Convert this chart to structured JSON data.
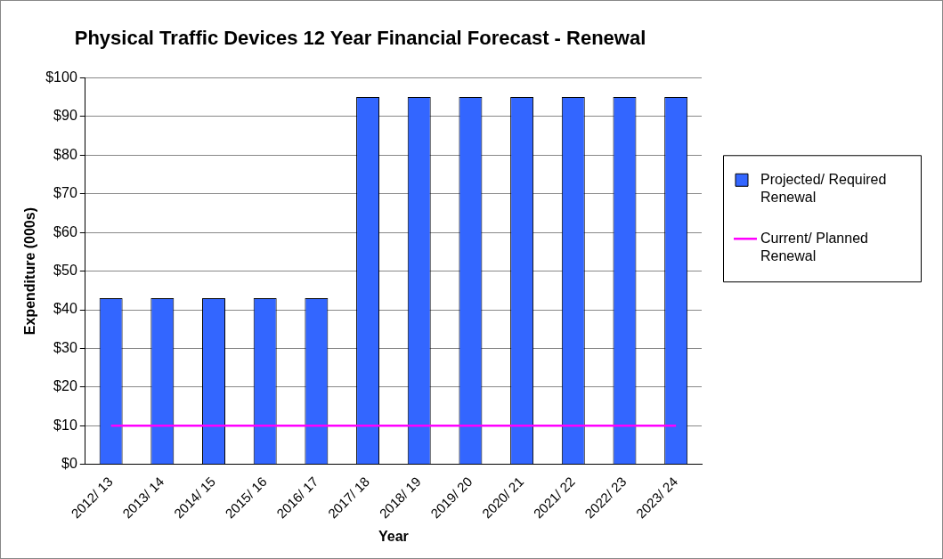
{
  "chart_data": {
    "type": "bar",
    "title": "Physical Traffic Devices 12 Year Financial Forecast - Renewal",
    "xlabel": "Year",
    "ylabel": "Expenditure (000s)",
    "categories": [
      "2012/ 13",
      "2013/ 14",
      "2014/ 15",
      "2015/ 16",
      "2016/ 17",
      "2017/ 18",
      "2018/ 19",
      "2019/ 20",
      "2020/ 21",
      "2021/ 22",
      "2022/ 23",
      "2023/ 24"
    ],
    "series": [
      {
        "name": "Projected/ Required Renewal",
        "color": "#3366ff",
        "values": [
          43,
          43,
          43,
          43,
          43,
          95,
          95,
          95,
          95,
          95,
          95,
          95
        ]
      },
      {
        "name": "Current/ Planned Renewal",
        "type": "line",
        "color": "#ff00ff",
        "values": [
          10,
          10,
          10,
          10,
          10,
          10,
          10,
          10,
          10,
          10,
          10,
          10
        ]
      }
    ],
    "ylim": [
      0,
      100
    ],
    "yticks": [
      {
        "value": 0,
        "label": "$0"
      },
      {
        "value": 10,
        "label": "$10"
      },
      {
        "value": 20,
        "label": "$20"
      },
      {
        "value": 30,
        "label": "$30"
      },
      {
        "value": 40,
        "label": "$40"
      },
      {
        "value": 50,
        "label": "$50"
      },
      {
        "value": 60,
        "label": "$60"
      },
      {
        "value": 70,
        "label": "$70"
      },
      {
        "value": 80,
        "label": "$80"
      },
      {
        "value": 90,
        "label": "$90"
      },
      {
        "value": 100,
        "label": "$100"
      }
    ],
    "grid": "y",
    "legend": "right",
    "marker": "none"
  }
}
